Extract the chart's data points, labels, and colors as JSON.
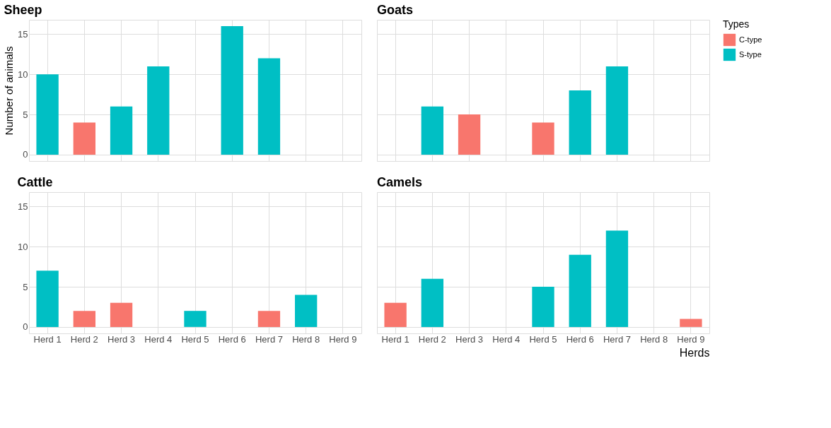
{
  "chart_data": [
    {
      "type": "bar",
      "title": "Sheep",
      "ylabel": "Number of animals",
      "legend_title": "Types",
      "legend": "right",
      "grid": true,
      "tick_labels": "y",
      "categories": [
        "Herd 1",
        "Herd 2",
        "Herd 3",
        "Herd 4",
        "Herd 5",
        "Herd 6",
        "Herd 7",
        "Herd 8",
        "Herd 9"
      ],
      "ylim": [
        -0.8,
        16.8
      ],
      "yticks": [
        0,
        5,
        10,
        15
      ],
      "series": [
        {
          "name": "C-type",
          "color": "#f8766d",
          "values": [
            null,
            4,
            null,
            null,
            null,
            null,
            null,
            null,
            null
          ]
        },
        {
          "name": "S-type",
          "color": "#00bfc4",
          "values": [
            10,
            null,
            6,
            11,
            null,
            16,
            12,
            null,
            null
          ]
        }
      ]
    },
    {
      "type": "bar",
      "title": "Goats",
      "grid": true,
      "tick_labels": false,
      "categories": [
        "Herd 1",
        "Herd 2",
        "Herd 3",
        "Herd 4",
        "Herd 5",
        "Herd 6",
        "Herd 7",
        "Herd 8",
        "Herd 9"
      ],
      "ylim": [
        -0.8,
        16.8
      ],
      "yticks": [
        0,
        5,
        10,
        15
      ],
      "series": [
        {
          "name": "C-type",
          "color": "#f8766d",
          "values": [
            null,
            null,
            5,
            null,
            4,
            null,
            null,
            null,
            null
          ]
        },
        {
          "name": "S-type",
          "color": "#00bfc4",
          "values": [
            null,
            6,
            null,
            null,
            null,
            8,
            11,
            null,
            null
          ]
        }
      ]
    },
    {
      "type": "bar",
      "title": "Cattle",
      "grid": true,
      "categories": [
        "Herd 1",
        "Herd 2",
        "Herd 3",
        "Herd 4",
        "Herd 5",
        "Herd 6",
        "Herd 7",
        "Herd 8",
        "Herd 9"
      ],
      "ylim": [
        -0.8,
        16.8
      ],
      "yticks": [
        0,
        5,
        10,
        15
      ],
      "series": [
        {
          "name": "C-type",
          "color": "#f8766d",
          "values": [
            null,
            2,
            3,
            null,
            null,
            null,
            2,
            null,
            null
          ]
        },
        {
          "name": "S-type",
          "color": "#00bfc4",
          "values": [
            7,
            null,
            null,
            null,
            2,
            null,
            null,
            4,
            null
          ]
        }
      ]
    },
    {
      "type": "bar",
      "title": "Camels",
      "xlabel": "Herds",
      "grid": true,
      "tick_labels": "x",
      "categories": [
        "Herd 1",
        "Herd 2",
        "Herd 3",
        "Herd 4",
        "Herd 5",
        "Herd 6",
        "Herd 7",
        "Herd 8",
        "Herd 9"
      ],
      "ylim": [
        -0.8,
        16.8
      ],
      "yticks": [
        0,
        5,
        10,
        15
      ],
      "series": [
        {
          "name": "C-type",
          "color": "#f8766d",
          "values": [
            3,
            null,
            null,
            null,
            null,
            null,
            null,
            null,
            1
          ]
        },
        {
          "name": "S-type",
          "color": "#00bfc4",
          "values": [
            null,
            6,
            null,
            null,
            5,
            9,
            12,
            null,
            null
          ]
        }
      ]
    }
  ]
}
